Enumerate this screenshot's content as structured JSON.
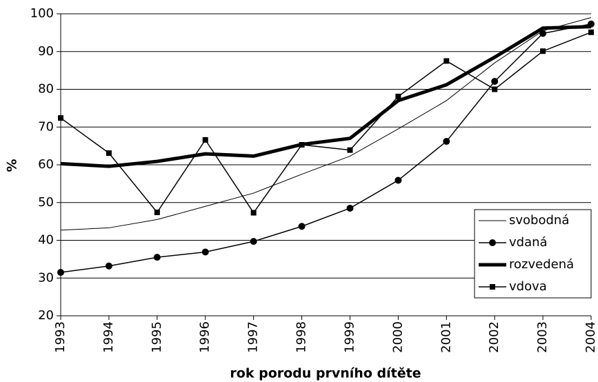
{
  "chart_data": {
    "type": "line",
    "xlabel": "rok porodu prvního dítěte",
    "ylabel": "%",
    "categories": [
      "1993",
      "1994",
      "1995",
      "1996",
      "1997",
      "1998",
      "1999",
      "2000",
      "2001",
      "2002",
      "2003",
      "2004"
    ],
    "series": [
      {
        "name": "svobodná",
        "color": "#000000",
        "values": [
          42.7,
          43.3,
          45.5,
          49,
          52.5,
          57.5,
          62.3,
          69.5,
          77,
          87,
          95.5,
          99
        ]
      },
      {
        "name": "vdaná",
        "color": "#000000",
        "values": [
          31.5,
          33.2,
          35.5,
          36.9,
          39.7,
          43.7,
          48.5,
          55.9,
          66.2,
          82.1,
          94.8,
          97.3
        ]
      },
      {
        "name": "rozvedená",
        "color": "#000000",
        "values": [
          60.3,
          59.6,
          60.9,
          62.9,
          62.3,
          65.4,
          67,
          77,
          81.2,
          88.5,
          96.2,
          96.6
        ]
      },
      {
        "name": "vdova",
        "color": "#000000",
        "values": [
          72.4,
          63.1,
          47.4,
          66.6,
          47.3,
          65.3,
          63.9,
          78.1,
          87.5,
          80,
          90.1,
          95.1
        ]
      }
    ],
    "ylim": [
      20,
      100
    ],
    "yticks": [
      20,
      30,
      40,
      50,
      60,
      70,
      80,
      90,
      100
    ],
    "grid": true,
    "legend": "lower right"
  }
}
